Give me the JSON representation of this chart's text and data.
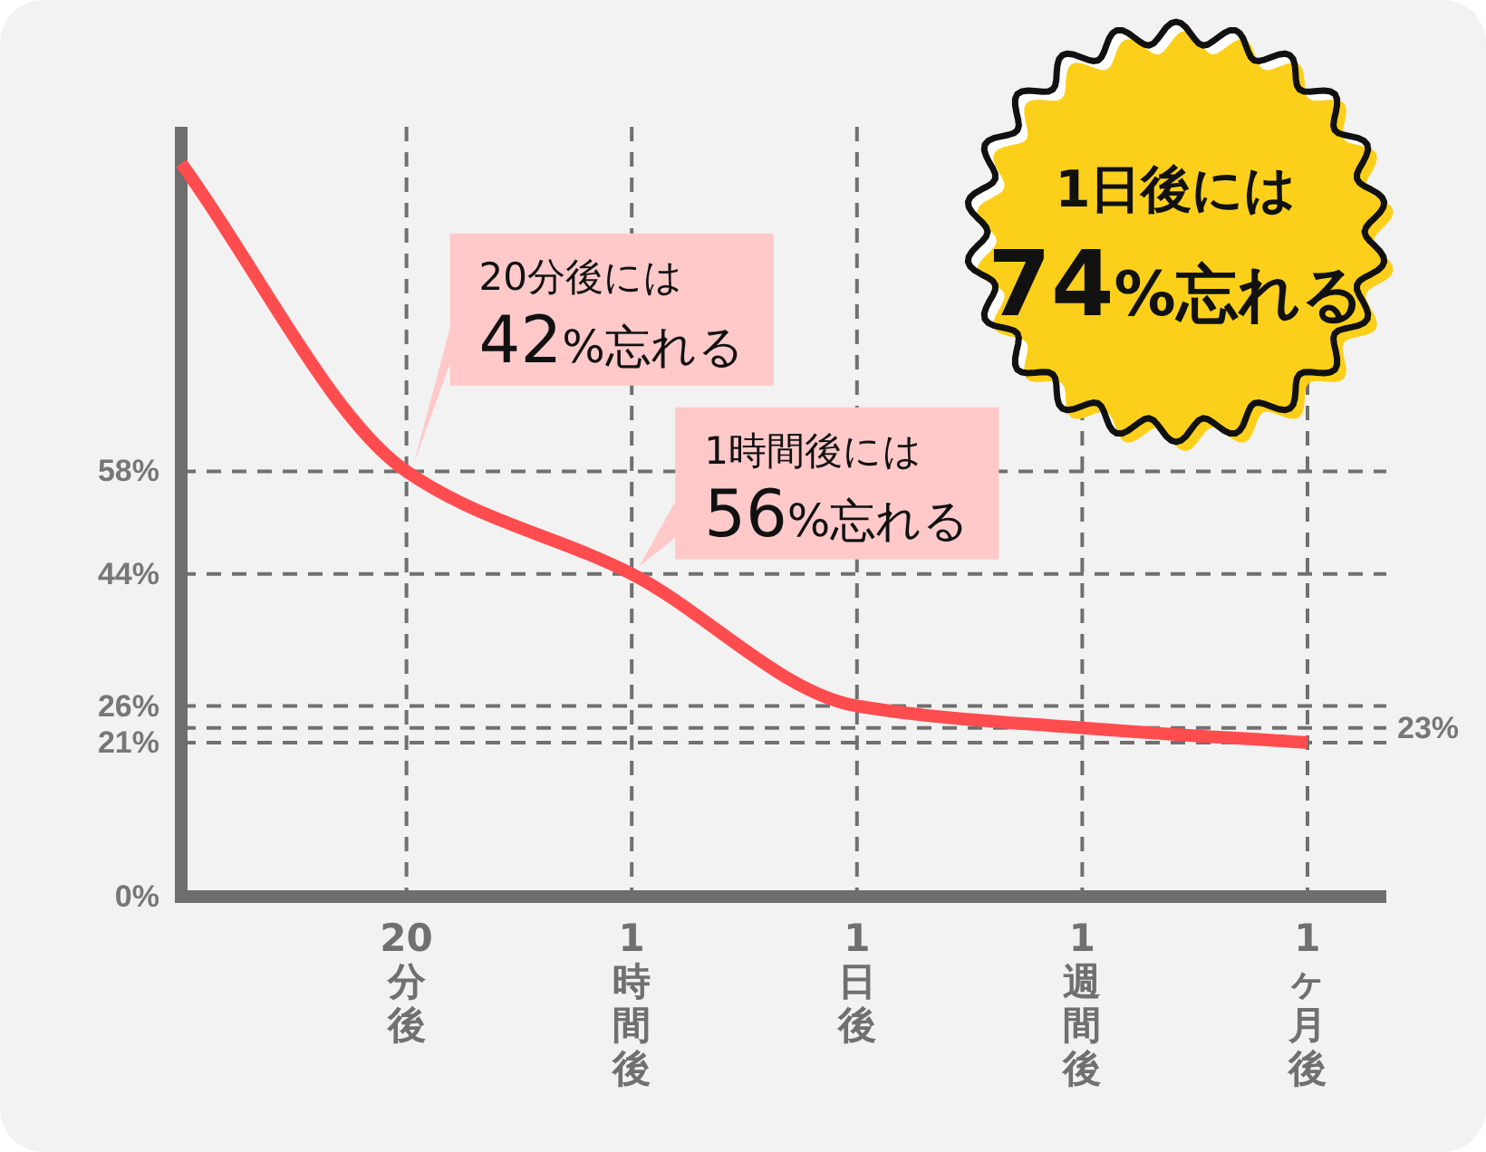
{
  "chart_data": {
    "type": "line",
    "categories": [
      null,
      "20分後",
      "1時間後",
      "1日後",
      "1週間後",
      "1ヶ月後"
    ],
    "series": [
      {
        "color": "#ff4d4f",
        "values": [
          100,
          58,
          44,
          26,
          23,
          21
        ]
      }
    ],
    "ylim": [
      0,
      105
    ],
    "yticks": [
      {
        "value": 0,
        "label": "0%"
      },
      {
        "value": 21,
        "label": "21%"
      },
      {
        "value": 26,
        "label": "26%"
      },
      {
        "value": 44,
        "label": "44%"
      },
      {
        "value": 58,
        "label": "58%"
      }
    ],
    "ref_lines": [
      {
        "axis": "y",
        "value": 23,
        "label": "23%",
        "color": "#707070",
        "line_style": "dashed"
      }
    ],
    "grid": true,
    "line_style": "solid",
    "annotations": [
      {
        "text": "20分後には\n42%忘れる",
        "x": "20分後",
        "y": 58
      },
      {
        "text": "1時間後には\n56%忘れる",
        "x": "1時間後",
        "y": 44
      },
      "1日後には\n74%忘れる"
    ]
  }
}
